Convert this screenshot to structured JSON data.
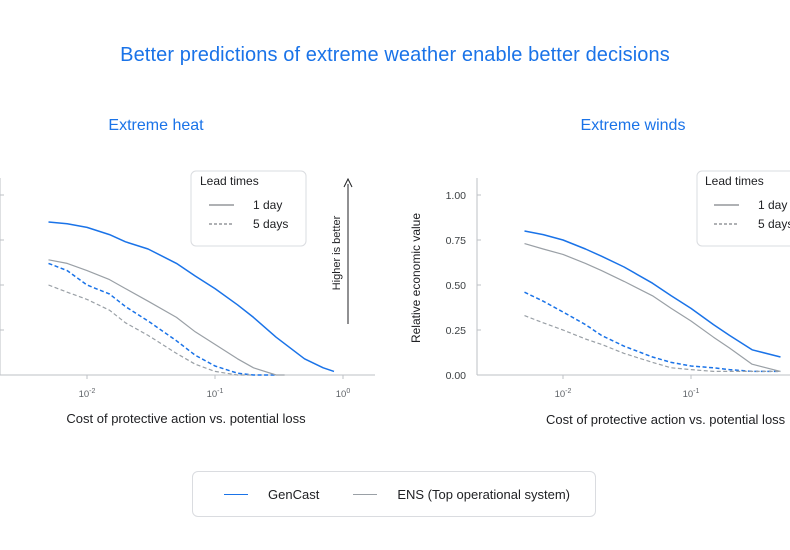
{
  "page": {
    "title": "Better predictions of extreme weather enable better decisions"
  },
  "chart_data": [
    {
      "type": "line",
      "title": "Extreme heat",
      "xlabel": "Cost of protective action vs. potential loss",
      "ylabel": "",
      "x_scale": "log",
      "xlim": [
        0.0045,
        1.0
      ],
      "ylim": [
        0,
        1.1
      ],
      "x_ticks": [
        {
          "value": 0.01,
          "base": "10",
          "exp": "-2"
        },
        {
          "value": 0.1,
          "base": "10",
          "exp": "-1"
        },
        {
          "value": 1,
          "base": "10",
          "exp": "0"
        }
      ],
      "y_ticks": [],
      "grid": false,
      "series": [
        {
          "model": "GenCast",
          "lead": "1 day",
          "color": "#1a73e8",
          "dash": "solid",
          "x": [
            0.005,
            0.007,
            0.01,
            0.015,
            0.02,
            0.03,
            0.05,
            0.07,
            0.1,
            0.15,
            0.2,
            0.3,
            0.5,
            0.7,
            0.85
          ],
          "y": [
            0.85,
            0.84,
            0.82,
            0.78,
            0.74,
            0.7,
            0.62,
            0.55,
            0.48,
            0.39,
            0.32,
            0.21,
            0.09,
            0.04,
            0.02
          ]
        },
        {
          "model": "GenCast",
          "lead": "5 days",
          "color": "#1a73e8",
          "dash": "dashed",
          "x": [
            0.005,
            0.007,
            0.008,
            0.01,
            0.015,
            0.02,
            0.03,
            0.05,
            0.07,
            0.1,
            0.15,
            0.2,
            0.3
          ],
          "y": [
            0.62,
            0.58,
            0.55,
            0.5,
            0.45,
            0.38,
            0.3,
            0.19,
            0.11,
            0.05,
            0.01,
            0.0,
            0.0
          ]
        },
        {
          "model": "ENS",
          "lead": "1 day",
          "color": "#9aa0a6",
          "dash": "solid",
          "x": [
            0.005,
            0.007,
            0.01,
            0.015,
            0.02,
            0.03,
            0.05,
            0.07,
            0.1,
            0.15,
            0.2,
            0.3,
            0.35
          ],
          "y": [
            0.64,
            0.62,
            0.58,
            0.53,
            0.48,
            0.41,
            0.32,
            0.24,
            0.17,
            0.09,
            0.04,
            0.0,
            0.0
          ]
        },
        {
          "model": "ENS",
          "lead": "5 days",
          "color": "#9aa0a6",
          "dash": "dashed",
          "x": [
            0.005,
            0.007,
            0.01,
            0.015,
            0.02,
            0.03,
            0.05,
            0.07,
            0.1,
            0.15,
            0.2
          ],
          "y": [
            0.5,
            0.46,
            0.42,
            0.36,
            0.29,
            0.22,
            0.12,
            0.06,
            0.02,
            0.0,
            0.0
          ]
        }
      ]
    },
    {
      "type": "line",
      "title": "Extreme winds",
      "xlabel": "Cost of protective action vs. potential loss",
      "ylabel": "Relative economic value",
      "x_scale": "log",
      "xlim": [
        0.0045,
        1.0
      ],
      "ylim": [
        0,
        1.0
      ],
      "x_ticks": [
        {
          "value": 0.01,
          "base": "10",
          "exp": "-2"
        },
        {
          "value": 0.1,
          "base": "10",
          "exp": "-1"
        }
      ],
      "y_ticks": [
        "0.00",
        "0.25",
        "0.50",
        "0.75",
        "1.00"
      ],
      "grid": false,
      "series": [
        {
          "model": "GenCast",
          "lead": "1 day",
          "color": "#1a73e8",
          "dash": "solid",
          "x": [
            0.005,
            0.007,
            0.01,
            0.015,
            0.02,
            0.03,
            0.05,
            0.07,
            0.1,
            0.15,
            0.2,
            0.3,
            0.5
          ],
          "y": [
            0.8,
            0.78,
            0.75,
            0.7,
            0.66,
            0.6,
            0.51,
            0.44,
            0.37,
            0.28,
            0.22,
            0.14,
            0.1
          ]
        },
        {
          "model": "GenCast",
          "lead": "5 days",
          "color": "#1a73e8",
          "dash": "dashed",
          "x": [
            0.005,
            0.007,
            0.01,
            0.015,
            0.02,
            0.03,
            0.05,
            0.07,
            0.1,
            0.15,
            0.2,
            0.3,
            0.5
          ],
          "y": [
            0.46,
            0.41,
            0.35,
            0.28,
            0.22,
            0.16,
            0.1,
            0.07,
            0.05,
            0.04,
            0.03,
            0.02,
            0.02
          ]
        },
        {
          "model": "ENS",
          "lead": "1 day",
          "color": "#9aa0a6",
          "dash": "solid",
          "x": [
            0.005,
            0.007,
            0.01,
            0.015,
            0.02,
            0.03,
            0.05,
            0.07,
            0.1,
            0.15,
            0.2,
            0.3,
            0.5
          ],
          "y": [
            0.73,
            0.7,
            0.67,
            0.62,
            0.58,
            0.52,
            0.44,
            0.37,
            0.3,
            0.21,
            0.15,
            0.06,
            0.02
          ]
        },
        {
          "model": "ENS",
          "lead": "5 days",
          "color": "#9aa0a6",
          "dash": "dashed",
          "x": [
            0.005,
            0.007,
            0.01,
            0.015,
            0.02,
            0.03,
            0.05,
            0.07,
            0.1,
            0.15,
            0.2,
            0.3,
            0.5
          ],
          "y": [
            0.33,
            0.29,
            0.25,
            0.2,
            0.17,
            0.12,
            0.07,
            0.04,
            0.03,
            0.02,
            0.02,
            0.02,
            0.02
          ]
        }
      ]
    }
  ],
  "lead_legend": {
    "title": "Lead times",
    "items": [
      {
        "label": "1 day",
        "dash": "solid"
      },
      {
        "label": "5 days",
        "dash": "dashed"
      }
    ]
  },
  "arrow_note": "Higher is better",
  "legend": {
    "items": [
      {
        "label": "GenCast",
        "color": "#1a73e8"
      },
      {
        "label": "ENS (Top operational system)",
        "color": "#9aa0a6"
      }
    ]
  },
  "colors": {
    "accent": "#1a73e8",
    "ens": "#9aa0a6",
    "axis": "#bdc1c6",
    "text": "#202124"
  }
}
